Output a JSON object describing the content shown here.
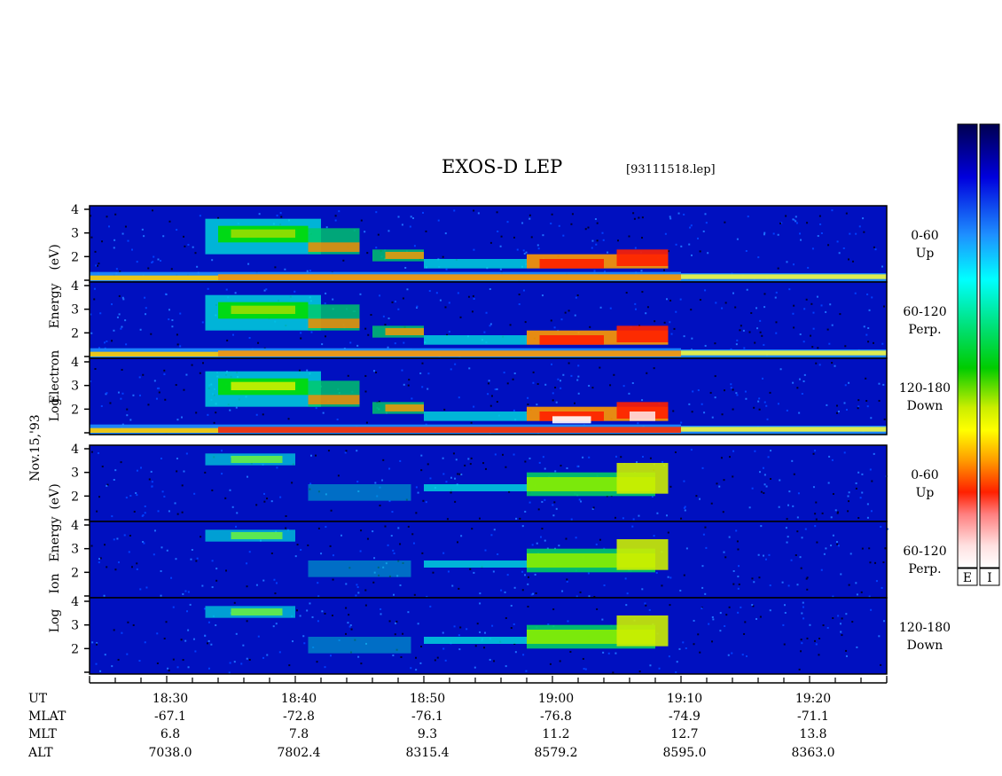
{
  "title": "EXOS-D LEP",
  "file_label": "[93111518.lep]",
  "date_label": "Nov.15,'93",
  "chart_data": {
    "type": "heatmap",
    "x_axis": {
      "quantity": "UT",
      "range": [
        "18:24",
        "19:26"
      ],
      "major_ticks": [
        "18:30",
        "18:40",
        "18:50",
        "19:00",
        "19:10",
        "19:20"
      ],
      "minor_tick_interval_min": 2
    },
    "y_axis": {
      "label": "Log Energy (eV)",
      "range": [
        1,
        4
      ],
      "ticks": [
        "2",
        "3",
        "4"
      ]
    },
    "groups": [
      {
        "name": "Log Electron Energy (eV)",
        "axis_label_words": [
          "Log",
          "Electron",
          "Energy",
          "(eV)"
        ],
        "colorbar_box": "E",
        "panels": [
          {
            "range": "0-60",
            "dir": "Up"
          },
          {
            "range": "60-120",
            "dir": "Perp."
          },
          {
            "range": "120-180",
            "dir": "Down"
          }
        ]
      },
      {
        "name": "Log Ion Energy (eV)",
        "axis_label_words": [
          "Log",
          "Ion",
          "Energy",
          "(eV)"
        ],
        "colorbar_box": "I",
        "panels": [
          {
            "range": "0-60",
            "dir": "Up"
          },
          {
            "range": "60-120",
            "dir": "Perp."
          },
          {
            "range": "120-180",
            "dir": "Down"
          }
        ]
      }
    ],
    "colorscale": [
      "#ffffff",
      "#ffb0b0",
      "#ff0000",
      "#ff8c00",
      "#ffff00",
      "#00dd00",
      "#00ffff",
      "#1e90ff",
      "#0000cc",
      "#000050"
    ],
    "ephemeris": {
      "rows": [
        {
          "label": "UT",
          "values": [
            "18:30",
            "18:40",
            "18:50",
            "19:00",
            "19:10",
            "19:20"
          ]
        },
        {
          "label": "MLAT",
          "values": [
            "-67.1",
            "-72.8",
            "-76.1",
            "-76.8",
            "-74.9",
            "-71.1"
          ]
        },
        {
          "label": "MLT",
          "values": [
            "6.8",
            "7.8",
            "9.3",
            "11.2",
            "12.7",
            "13.8"
          ]
        },
        {
          "label": "ALT",
          "values": [
            "7038.0",
            "7802.4",
            "8315.4",
            "8579.2",
            "8595.0",
            "8363.0"
          ]
        }
      ]
    }
  }
}
